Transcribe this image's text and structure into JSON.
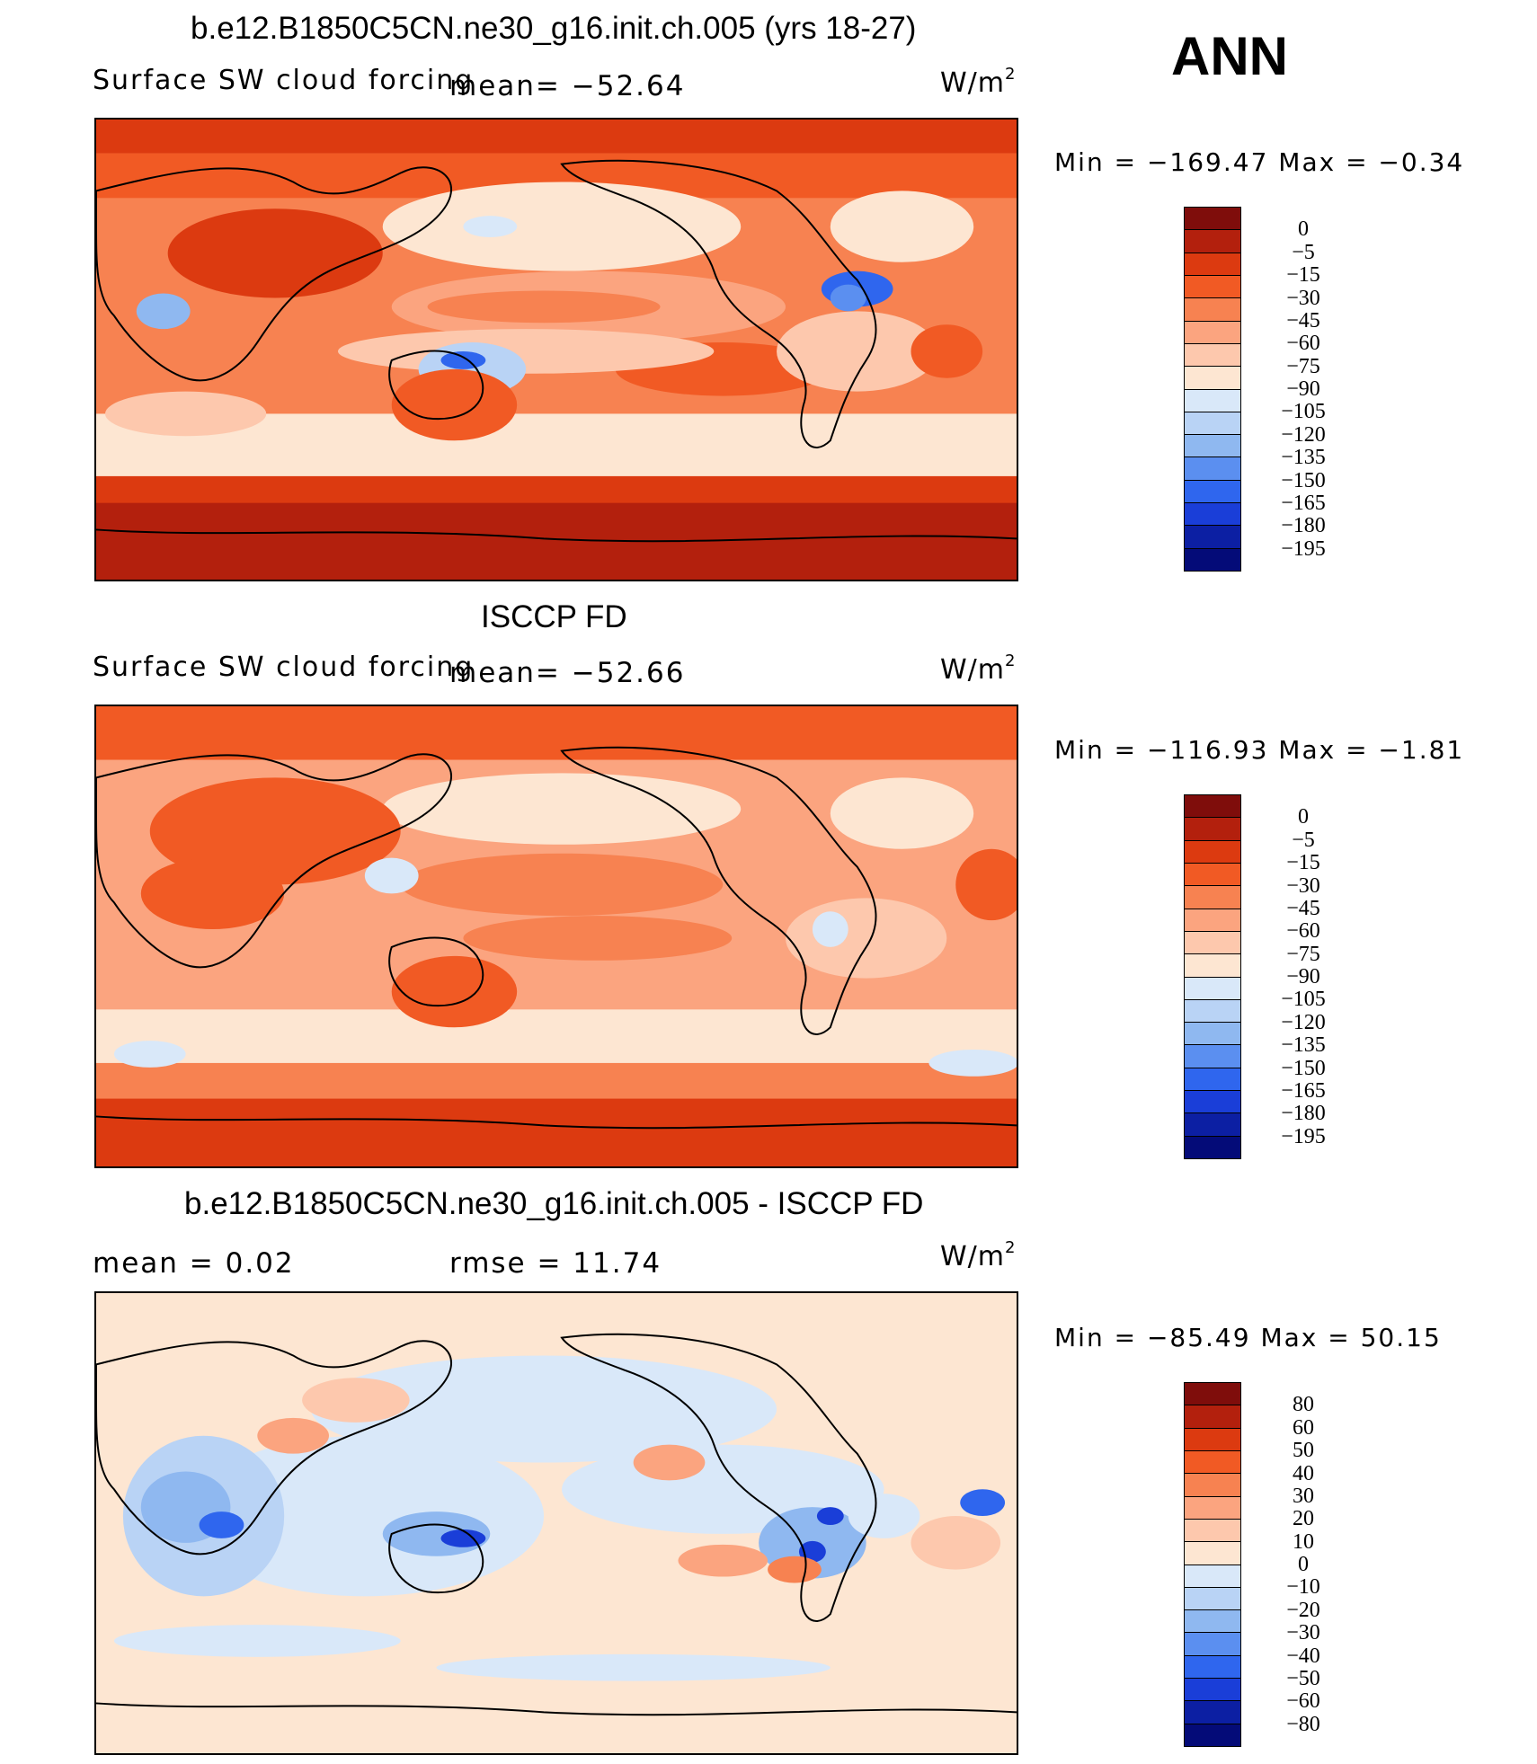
{
  "header": {
    "case_title": "b.e12.B1850C5CN.ne30_g16.init.ch.005 (yrs 18-27)",
    "season": "ANN"
  },
  "panels": [
    {
      "id": "model",
      "title": "b.e12.B1850C5CN.ne30_g16.init.ch.005 (yrs 18-27)",
      "left_label": "Surface SW cloud forcing",
      "mean_label": "mean=  −52.64",
      "rmse_label": "",
      "units": "W/m",
      "units_exp": "2",
      "min_max": "Min  =  −169.47  Max  =    −0.34",
      "colorbar_labels": [
        "0",
        "−5",
        "−15",
        "−30",
        "−45",
        "−60",
        "−75",
        "−90",
        "−105",
        "−120",
        "−135",
        "−150",
        "−165",
        "−180",
        "−195"
      ]
    },
    {
      "id": "obs",
      "title": "ISCCP FD",
      "left_label": "Surface SW cloud forcing",
      "mean_label": "mean=  −52.66",
      "rmse_label": "",
      "units": "W/m",
      "units_exp": "2",
      "min_max": "Min  =  −116.93  Max  =    −1.81",
      "colorbar_labels": [
        "0",
        "−5",
        "−15",
        "−30",
        "−45",
        "−60",
        "−75",
        "−90",
        "−105",
        "−120",
        "−135",
        "−150",
        "−165",
        "−180",
        "−195"
      ]
    },
    {
      "id": "diff",
      "title": "b.e12.B1850C5CN.ne30_g16.init.ch.005 - ISCCP FD",
      "left_label": "mean  =     0.02",
      "mean_label": "",
      "rmse_label": "rmse  =    11.74",
      "units": "W/m",
      "units_exp": "2",
      "min_max": "Min  =  −85.49  Max  =    50.15",
      "colorbar_labels": [
        "80",
        "60",
        "50",
        "40",
        "30",
        "20",
        "10",
        "0",
        "−10",
        "−20",
        "−30",
        "−40",
        "−50",
        "−60",
        "−80"
      ]
    }
  ],
  "colorbars": {
    "abs_colors": [
      "#7f0d0b",
      "#b3200d",
      "#dc3a10",
      "#f15a24",
      "#f78251",
      "#fba47f",
      "#fdc8ad",
      "#fde6d2",
      "#d9e8f9",
      "#b9d3f5",
      "#8fb8f0",
      "#5b8ff0",
      "#2f66ee",
      "#1a3ed8",
      "#0c1fa3",
      "#040b78"
    ],
    "diff_colors": [
      "#7f0d0b",
      "#b3200d",
      "#dc3a10",
      "#f15a24",
      "#f78251",
      "#fba47f",
      "#fdc8ad",
      "#fde6d2",
      "#d9e8f9",
      "#b9d3f5",
      "#8fb8f0",
      "#5b8ff0",
      "#2f66ee",
      "#1a3ed8",
      "#0c1fa3",
      "#040b78"
    ]
  }
}
